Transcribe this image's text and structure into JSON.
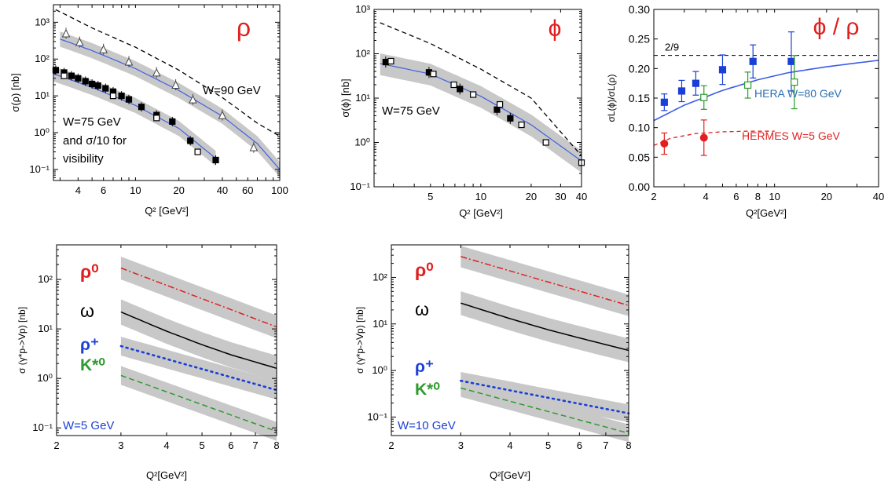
{
  "chart_data": [
    {
      "type": "line",
      "panel_label": "ρ",
      "xscale": "log",
      "yscale": "log",
      "xlim": [
        2.7,
        100
      ],
      "ylim": [
        0.05,
        3000
      ],
      "xlabel": "Q² [GeV²]",
      "ylabel": "σ(ρ) [nb]",
      "xticks": [
        4,
        6,
        10,
        20,
        40,
        60,
        100
      ],
      "yticks": [
        "10⁻¹",
        "10⁰",
        "10¹",
        "10²",
        "10³"
      ],
      "annotations": [
        "W=90 GeV",
        "W=75 GeV",
        "and σ/10 for",
        "visibility"
      ],
      "series": [
        {
          "style": "dashed-black",
          "x": [
            2.8,
            5,
            10,
            20,
            40,
            70,
            100
          ],
          "y": [
            2200,
            700,
            210,
            50,
            9,
            1.8,
            0.8
          ]
        },
        {
          "style": "blue-band",
          "x": [
            3,
            5,
            10,
            20,
            40,
            70,
            100
          ],
          "y": [
            350,
            170,
            55,
            14,
            2.8,
            0.5,
            0.1
          ]
        },
        {
          "style": "open-triangle",
          "x": [
            3.3,
            4.1,
            6,
            9,
            14,
            19,
            25,
            40,
            66
          ],
          "y": [
            500,
            290,
            185,
            85,
            43,
            20,
            8,
            3,
            0.4
          ]
        },
        {
          "style": "blue-band",
          "x": [
            2.7,
            5,
            10,
            20,
            36
          ],
          "y": [
            40,
            17,
            5.5,
            1.3,
            0.2
          ]
        },
        {
          "style": "filled-square",
          "x": [
            2.8,
            3.2,
            3.6,
            4,
            4.5,
            5,
            5.5,
            6.2,
            7,
            8,
            9,
            11,
            14,
            18,
            24,
            36
          ],
          "y": [
            50,
            43,
            35,
            30,
            25,
            21,
            19,
            16,
            13,
            10,
            8,
            5,
            3,
            2,
            0.6,
            0.18
          ]
        },
        {
          "style": "open-square",
          "x": [
            3.2,
            7,
            14,
            27
          ],
          "y": [
            35,
            10,
            2.5,
            0.3
          ]
        }
      ]
    },
    {
      "type": "line",
      "panel_label": "ϕ",
      "xscale": "log",
      "yscale": "log",
      "xlim": [
        2.3,
        40
      ],
      "ylim": [
        0.1,
        1000
      ],
      "xlabel": "Q² [GeV²]",
      "ylabel": "σ(ϕ) [nb]",
      "xticks": [
        5,
        10,
        20,
        30,
        40
      ],
      "yticks": [
        "10⁻¹",
        "10⁰",
        "10¹",
        "10²",
        "10³"
      ],
      "annotations": [
        "W=75  GeV"
      ],
      "series": [
        {
          "style": "dashed-black",
          "x": [
            2.5,
            5,
            10,
            20,
            40
          ],
          "y": [
            500,
            170,
            45,
            10,
            0.5
          ]
        },
        {
          "style": "blue-band",
          "x": [
            2.5,
            5,
            10,
            20,
            40
          ],
          "y": [
            60,
            35,
            11,
            2.5,
            0.38
          ]
        },
        {
          "style": "filled-square",
          "x": [
            2.7,
            4.9,
            7.5,
            12.5,
            15
          ],
          "y": [
            65,
            38,
            16,
            5.5,
            3.5
          ]
        },
        {
          "style": "open-square",
          "x": [
            2.9,
            5.2,
            6.9,
            9,
            13,
            17.5,
            24.5,
            40
          ],
          "y": [
            68,
            35,
            20,
            12,
            7.2,
            2.5,
            1,
            0.35
          ]
        }
      ]
    },
    {
      "type": "scatter",
      "panel_label": "ϕ / ρ",
      "xscale": "log",
      "xlim": [
        2,
        40
      ],
      "ylim": [
        0,
        0.3
      ],
      "xlabel": "Q²[GeV²]",
      "ylabel": "σL(ϕ)/σL(ρ)",
      "xticks": [
        2,
        4,
        6,
        8,
        10,
        20,
        40
      ],
      "xtick_labels": [
        "2",
        "4",
        "6",
        "8",
        "10",
        "20",
        "40"
      ],
      "yticks": [
        0,
        0.05,
        0.1,
        0.15,
        0.2,
        0.25,
        0.3
      ],
      "ytick_labels": [
        "0.00",
        "0.05",
        "0.10",
        "0.15",
        "0.20",
        "0.25",
        "0.30"
      ],
      "reference_line": {
        "y": 0.2222,
        "label": "2/9"
      },
      "annotations": [
        "HERA W=80 GeV",
        "HERMES W=5 GeV"
      ],
      "series": [
        {
          "style": "hera-filled",
          "color": "#1a3fd6",
          "x": [
            2.3,
            2.9,
            3.5,
            5,
            7.5,
            12.5
          ],
          "y": [
            0.143,
            0.162,
            0.175,
            0.198,
            0.212,
            0.212
          ],
          "err": [
            0.014,
            0.018,
            0.02,
            0.025,
            0.028,
            0.05
          ]
        },
        {
          "style": "hera-open",
          "color": "#2e9a2e",
          "x": [
            3.9,
            7,
            13
          ],
          "y": [
            0.151,
            0.172,
            0.177
          ],
          "err": [
            0.02,
            0.022,
            0.045
          ]
        },
        {
          "style": "hermes",
          "color": "#e02020",
          "x": [
            2.3,
            3.9
          ],
          "y": [
            0.073,
            0.083
          ],
          "err": [
            0.018,
            0.03
          ]
        },
        {
          "style": "hera-curve",
          "color": "#3a5ce8",
          "x": [
            2,
            3,
            5,
            8,
            12,
            20,
            40
          ],
          "y": [
            0.112,
            0.138,
            0.163,
            0.181,
            0.193,
            0.203,
            0.214
          ]
        },
        {
          "style": "hermes-curve",
          "color": "#e02020",
          "x": [
            2,
            2.5,
            3.5,
            5,
            7,
            10
          ],
          "y": [
            0.07,
            0.082,
            0.09,
            0.093,
            0.094,
            0.094
          ]
        }
      ]
    },
    {
      "type": "line",
      "xscale": "log",
      "yscale": "log",
      "xlim": [
        2,
        8
      ],
      "ylim": [
        0.07,
        500
      ],
      "xlabel": "Q²[GeV²]",
      "ylabel": "σ (γ*p->Vp)  [nb]",
      "xticks": [
        2,
        3,
        4,
        5,
        6,
        7,
        8
      ],
      "yticks": [
        "10⁻¹",
        "10⁰",
        "10¹",
        "10²"
      ],
      "annotations": [
        "W=5 GeV"
      ],
      "series": [
        {
          "name": "ρ⁰",
          "color": "#e02020",
          "style": "dashdot",
          "x": [
            3,
            8
          ],
          "y": [
            170,
            11
          ]
        },
        {
          "name": "ω",
          "color": "#000000",
          "style": "solid",
          "x": [
            3,
            4,
            5,
            6,
            8
          ],
          "y": [
            22,
            9,
            4.8,
            3,
            1.6
          ]
        },
        {
          "name": "ρ⁺",
          "color": "#1a3fd6",
          "style": "dotted",
          "x": [
            3,
            8
          ],
          "y": [
            4.5,
            0.58
          ]
        },
        {
          "name": "K*⁰",
          "color": "#2e9a2e",
          "style": "dashed",
          "x": [
            3,
            8
          ],
          "y": [
            1.15,
            0.085
          ]
        }
      ]
    },
    {
      "type": "line",
      "xscale": "log",
      "yscale": "log",
      "xlim": [
        2,
        8
      ],
      "ylim": [
        0.04,
        500
      ],
      "xlabel": "Q²[GeV²]",
      "ylabel": "σ (γ*p->Vp)  [nb]",
      "xticks": [
        2,
        3,
        4,
        5,
        6,
        7,
        8
      ],
      "yticks": [
        "10⁻¹",
        "10⁰",
        "10¹",
        "10²"
      ],
      "annotations": [
        "W=10 GeV"
      ],
      "series": [
        {
          "name": "ρ⁰",
          "color": "#e02020",
          "style": "dashdot",
          "x": [
            3,
            8
          ],
          "y": [
            280,
            25
          ]
        },
        {
          "name": "ω",
          "color": "#000000",
          "style": "solid",
          "x": [
            3,
            4,
            5,
            6,
            8
          ],
          "y": [
            28,
            13,
            7.5,
            5,
            2.7
          ]
        },
        {
          "name": "ρ⁺",
          "color": "#1a3fd6",
          "style": "dotted",
          "x": [
            3,
            8
          ],
          "y": [
            0.6,
            0.12
          ]
        },
        {
          "name": "K*⁰",
          "color": "#2e9a2e",
          "style": "dashed",
          "x": [
            3,
            8
          ],
          "y": [
            0.42,
            0.045
          ]
        }
      ]
    }
  ],
  "colors": {
    "red_label": "#e02020",
    "blue_label": "#1a3fd6",
    "green_label": "#2e9a2e",
    "hera_text": "#2a6fb0",
    "band": "#c8c8c8"
  }
}
